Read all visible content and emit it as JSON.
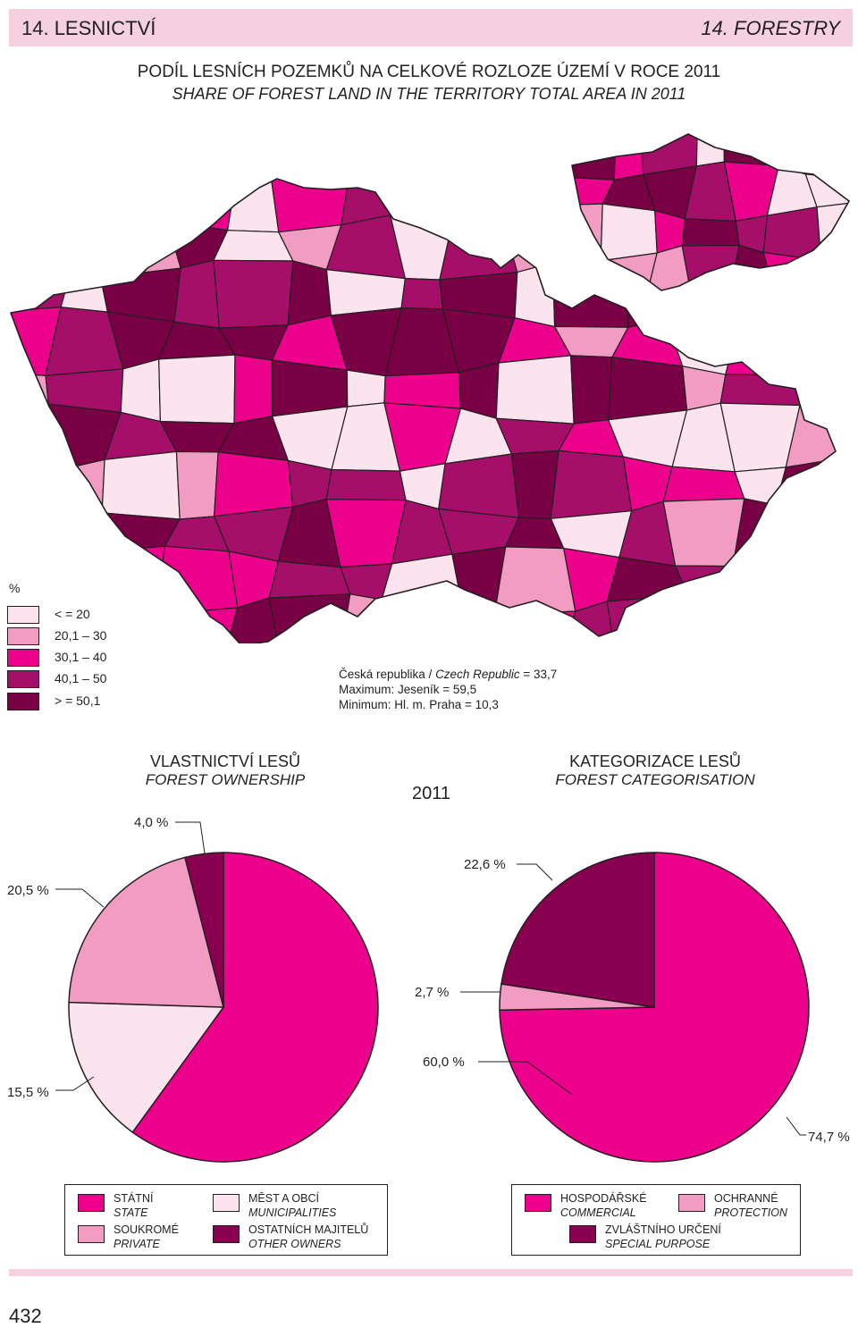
{
  "header": {
    "left": "14. LESNICTVÍ",
    "right": "14. FORESTRY"
  },
  "map": {
    "title_cz": "PODÍL LESNÍCH POZEMKŮ NA CELKOVÉ ROZLOZE ÚZEMÍ V ROCE 2011",
    "title_en": "SHARE OF FOREST LAND IN THE TERRITORY TOTAL AREA IN 2011",
    "legend_unit": "%",
    "legend": [
      {
        "label": "< = 20",
        "color": "#fce4ef"
      },
      {
        "label": "20,1 – 30",
        "color": "#f29cc3"
      },
      {
        "label": "30,1 – 40",
        "color": "#ec008c"
      },
      {
        "label": "40,1 – 50",
        "color": "#a50f6a"
      },
      {
        "label": "> = 50,1",
        "color": "#7a0046"
      }
    ],
    "stats": {
      "republic_cz": "Česká republika / ",
      "republic_en": "Czech Republic",
      "republic_value": " = 33,7",
      "maximum": "Maximum: Jeseník = 59,5",
      "minimum": "Minimum: Hl. m. Praha = 10,3"
    }
  },
  "year": "2011",
  "ownership": {
    "title_cz": "VLASTNICTVÍ LESŮ",
    "title_en": "FOREST OWNERSHIP"
  },
  "categorisation": {
    "title_cz": "KATEGORIZACE LESŮ",
    "title_en": "FOREST CATEGORISATION"
  },
  "chart_data": [
    {
      "type": "pie",
      "title": "VLASTNICTVÍ LESŮ / FOREST OWNERSHIP",
      "slices": [
        {
          "name": "STÁTNÍ / STATE",
          "value": 60.0,
          "label": "60,0 %",
          "color": "#ec008c"
        },
        {
          "name": "MĚST A OBCÍ / MUNICIPALITIES",
          "value": 15.5,
          "label": "15,5 %",
          "color": "#fce4ef"
        },
        {
          "name": "SOUKROMÉ / PRIVATE",
          "value": 20.5,
          "label": "20,5 %",
          "color": "#f29cc3"
        },
        {
          "name": "OSTATNÍCH MAJITELŮ / OTHER OWNERS",
          "value": 4.0,
          "label": "4,0 %",
          "color": "#8a0050"
        }
      ]
    },
    {
      "type": "pie",
      "title": "KATEGORIZACE LESŮ / FOREST CATEGORISATION",
      "slices": [
        {
          "name": "HOSPODÁŘSKÉ / COMMERCIAL",
          "value": 74.7,
          "label": "74,7 %",
          "color": "#ec008c"
        },
        {
          "name": "OCHRANNÉ / PROTECTION",
          "value": 2.7,
          "label": "2,7 %",
          "color": "#f29cc3"
        },
        {
          "name": "ZVLÁŠTNÍHO URČENÍ / SPECIAL PURPOSE",
          "value": 22.6,
          "label": "22,6 %",
          "color": "#8a0050"
        }
      ]
    }
  ],
  "ownership_legend": [
    {
      "cz": "STÁTNÍ",
      "en": "STATE",
      "color": "#ec008c"
    },
    {
      "cz": "MĚST A OBCÍ",
      "en": "MUNICIPALITIES",
      "color": "#fce4ef"
    },
    {
      "cz": "SOUKROMÉ",
      "en": "PRIVATE",
      "color": "#f29cc3"
    },
    {
      "cz": "OSTATNÍCH MAJITELŮ",
      "en": "OTHER OWNERS",
      "color": "#8a0050"
    }
  ],
  "categorisation_legend": [
    {
      "cz": "HOSPODÁŘSKÉ",
      "en": "COMMERCIAL",
      "color": "#ec008c"
    },
    {
      "cz": "OCHRANNÉ",
      "en": "PROTECTION",
      "color": "#f29cc3"
    },
    {
      "cz": "ZVLÁŠTNÍHO URČENÍ",
      "en": "SPECIAL PURPOSE",
      "color": "#8a0050"
    }
  ],
  "page_number": "432"
}
